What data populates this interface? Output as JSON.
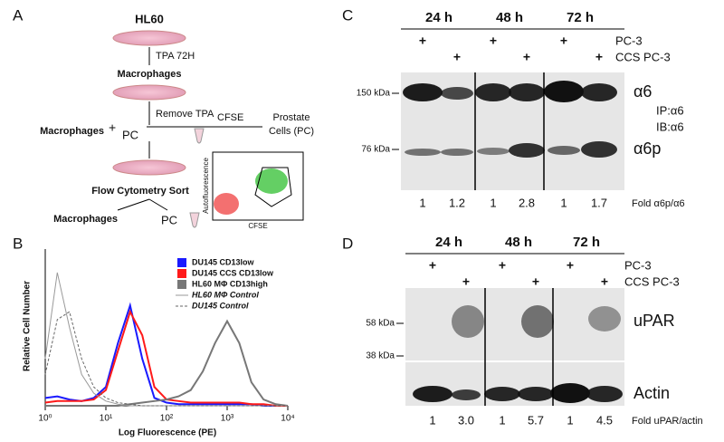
{
  "panel_labels": [
    "A",
    "B",
    "C",
    "D"
  ],
  "panel_a": {
    "start": "HL60",
    "step1": "TPA 72H",
    "stage1": "Macrophages",
    "step2": "Remove TPA",
    "stage2_left": "Macrophages",
    "plus": "+",
    "stage2_right": "PC",
    "stain": "CFSE",
    "source": [
      "Prostate",
      "Cells (PC)"
    ],
    "sort": "Flow Cytometry Sort",
    "out_left": "Macrophages",
    "out_right": "PC",
    "inset_y": "Autofluorescence",
    "inset_x": "CFSE"
  },
  "chart_data": {
    "type": "line",
    "xlabel": "Log Fluorescence (PE)",
    "ylabel": "Relative Cell Number",
    "xscale": "log",
    "x": [
      1,
      1.58,
      2.51,
      3.98,
      6.31,
      10,
      15.8,
      25.1,
      39.8,
      63.1,
      100,
      158,
      251,
      398,
      631,
      1000,
      1585,
      2512,
      3981,
      6310,
      10000
    ],
    "xlim": [
      1,
      10000
    ],
    "ylim": [
      0,
      100
    ],
    "xticks": [
      {
        "value": 1,
        "label": "10⁰"
      },
      {
        "value": 10,
        "label": "10¹"
      },
      {
        "value": 100,
        "label": "10²"
      },
      {
        "value": 1000,
        "label": "10³"
      },
      {
        "value": 10000,
        "label": "10⁴"
      }
    ],
    "series": [
      {
        "name": "DU145 CD13low",
        "color": "#1a1aff",
        "style": "box",
        "values": [
          5,
          6,
          4,
          3,
          5,
          12,
          40,
          64,
          30,
          5,
          2,
          1,
          1,
          1,
          1,
          1,
          1,
          1,
          0,
          0,
          0
        ]
      },
      {
        "name": "DU145 CCS CD13low",
        "color": "#ff1a1a",
        "style": "box",
        "values": [
          2,
          3,
          3,
          3,
          4,
          10,
          35,
          60,
          45,
          12,
          4,
          3,
          2,
          2,
          2,
          2,
          2,
          1,
          1,
          0,
          0
        ]
      },
      {
        "name": "HL60 MΦ CD13high",
        "color": "#777777",
        "style": "box",
        "values": [
          0,
          0,
          0,
          0,
          0,
          0,
          0,
          1,
          2,
          3,
          4,
          6,
          10,
          22,
          40,
          54,
          40,
          15,
          4,
          1,
          0
        ]
      },
      {
        "name": "HL60 MΦ Control",
        "color": "#999999",
        "style": "line",
        "values": [
          30,
          85,
          50,
          20,
          8,
          3,
          1,
          0,
          0,
          0,
          0,
          0,
          0,
          0,
          0,
          0,
          0,
          0,
          0,
          0,
          0
        ]
      },
      {
        "name": "DU145 Control",
        "color": "#666666",
        "style": "dash",
        "values": [
          20,
          55,
          60,
          30,
          12,
          5,
          2,
          1,
          0,
          0,
          0,
          0,
          0,
          0,
          0,
          0,
          0,
          0,
          0,
          0,
          0
        ]
      }
    ]
  },
  "panel_c": {
    "timepoints": [
      "24 h",
      "48 h",
      "72 h"
    ],
    "conditions": [
      {
        "label": "PC-3",
        "mark": "+"
      },
      {
        "label": "CCS PC-3",
        "mark": "+"
      }
    ],
    "mw_markers": [
      "150 kDa",
      "76 kDa"
    ],
    "band_labels": [
      "α6",
      "α6p"
    ],
    "ip_ib": [
      "IP:α6",
      "IB:α6"
    ],
    "fold": [
      "1",
      "1.2",
      "1",
      "2.8",
      "1",
      "1.7"
    ],
    "fold_label": "Fold α6p/α6"
  },
  "panel_d": {
    "timepoints": [
      "24 h",
      "48 h",
      "72 h"
    ],
    "conditions": [
      {
        "label": "PC-3",
        "mark": "+"
      },
      {
        "label": "CCS PC-3",
        "mark": "+"
      }
    ],
    "mw_markers": [
      "58 kDa",
      "38 kDa"
    ],
    "band_labels": [
      "uPAR",
      "Actin"
    ],
    "fold": [
      "1",
      "3.0",
      "1",
      "5.7",
      "1",
      "4.5"
    ],
    "fold_label": "Fold uPAR/actin"
  }
}
